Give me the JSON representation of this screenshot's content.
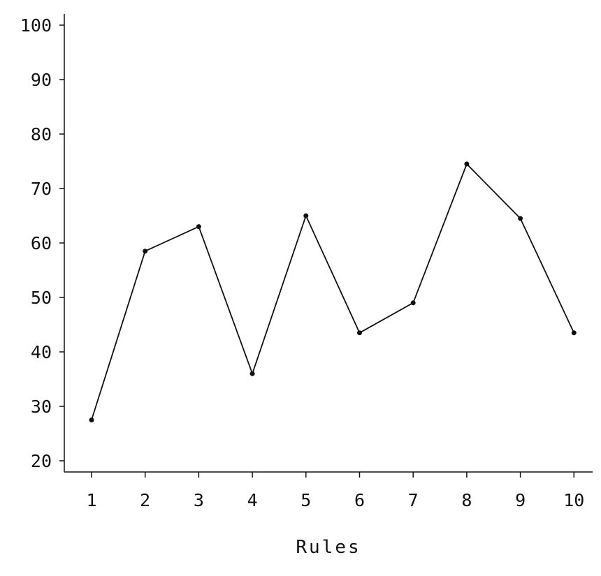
{
  "chart_data": {
    "type": "line",
    "title": "",
    "xlabel": "Rules",
    "ylabel": "",
    "x": [
      1,
      2,
      3,
      4,
      5,
      6,
      7,
      8,
      9,
      10
    ],
    "x_tick_labels": [
      "1",
      "2",
      "3",
      "4",
      "5",
      "6",
      "7",
      "8",
      "9",
      "10"
    ],
    "y_tick_labels": [
      "100",
      "90",
      "80",
      "70",
      "60",
      "50",
      "40",
      "30",
      "20"
    ],
    "y_ticks": [
      100,
      90,
      80,
      70,
      60,
      50,
      40,
      30,
      20
    ],
    "series": [
      {
        "values": [
          27.5,
          58.5,
          63,
          36,
          65,
          43.5,
          49,
          74.5,
          64.5,
          43.5
        ]
      }
    ],
    "ylim": [
      15,
      100
    ],
    "xlim": [
      1,
      10
    ],
    "grid": false,
    "line_color": "#111111",
    "marker_color": "#111111"
  }
}
